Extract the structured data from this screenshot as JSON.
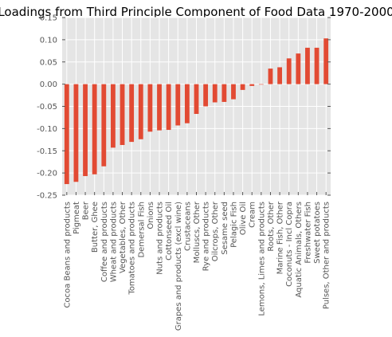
{
  "chart_data": {
    "type": "bar",
    "title": "Loadings from Third Principle Component of Food Data 1970-2000",
    "xlabel": "",
    "ylabel": "",
    "ylim": [
      -0.25,
      0.15
    ],
    "yticks": [
      "0.15",
      "0.10",
      "0.05",
      "0.00",
      "-0.05",
      "-0.10",
      "-0.15",
      "-0.20",
      "-0.25"
    ],
    "ytick_values": [
      0.15,
      0.1,
      0.05,
      0.0,
      -0.05,
      -0.1,
      -0.15,
      -0.2,
      -0.25
    ],
    "grid": true,
    "legend": "none",
    "bar_color": "#e24a33",
    "background_color": "#e5e5e5",
    "grid_color": "#ffffff",
    "categories": [
      "Cocoa Beans and products",
      "Pigmeat",
      "Beer",
      "Butter, Ghee",
      "Coffee and products",
      "Wheat and products",
      "Vegetables, Other",
      "Tomatoes and products",
      "Demersal Fish",
      "Onions",
      "Nuts and products",
      "Cottonseed Oil",
      "Grapes and products (excl wine)",
      "Crustaceans",
      "Molluscs, Other",
      "Rye and products",
      "Oilcrops, Other",
      "Sesame seed",
      "Pelagic Fish",
      "Olive Oil",
      "Cream",
      "Lemons, Limes and products",
      "Roots, Other",
      "Marine Fish, Other",
      "Coconuts - Incl Copra",
      "Aquatic Animals, Others",
      "Freshwater Fish",
      "Sweet potatoes",
      "Pulses, Other and products"
    ],
    "values": [
      -0.225,
      -0.22,
      -0.207,
      -0.203,
      -0.185,
      -0.143,
      -0.137,
      -0.13,
      -0.124,
      -0.107,
      -0.104,
      -0.103,
      -0.093,
      -0.088,
      -0.067,
      -0.05,
      -0.041,
      -0.04,
      -0.034,
      -0.013,
      -0.004,
      -0.001,
      0.035,
      0.038,
      0.058,
      0.069,
      0.082,
      0.082,
      0.103
    ]
  }
}
